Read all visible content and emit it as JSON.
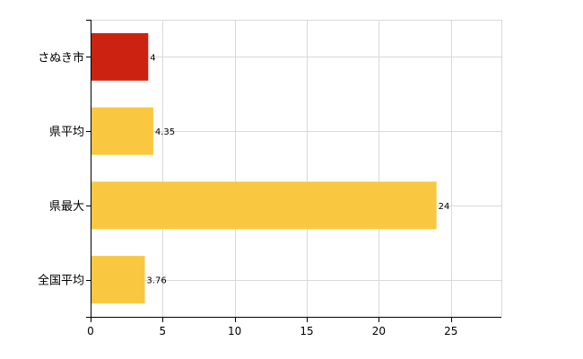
{
  "chart_data": {
    "type": "bar",
    "orientation": "horizontal",
    "categories": [
      "さぬき市",
      "県平均",
      "県最大",
      "全国平均"
    ],
    "values": [
      4,
      4.35,
      24,
      3.76
    ],
    "value_labels": [
      "4",
      "4.35",
      "24",
      "3.76"
    ],
    "bar_colors": [
      "#cc2211",
      "#f9c840",
      "#f9c840",
      "#f9c840"
    ],
    "xlim": [
      0,
      28.5
    ],
    "xticks": [
      0,
      5,
      10,
      15,
      20,
      25
    ],
    "xtick_labels": [
      "0",
      "5",
      "10",
      "15",
      "20",
      "25"
    ],
    "grid": true,
    "legend": false
  }
}
